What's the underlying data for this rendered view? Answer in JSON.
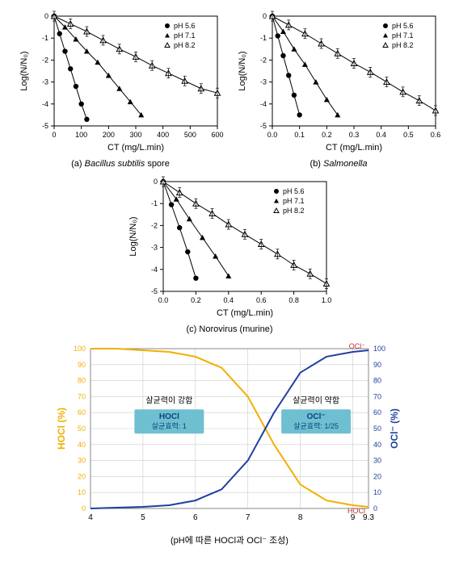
{
  "captions": {
    "a": "(a)",
    "a_name": "Bacillus subtilis",
    "a_suffix": "spore",
    "b": "(b)",
    "b_name": "Salmonella",
    "c": "(c)",
    "c_name": "Norovirus (murine)",
    "d": "(pH에 따른 HOCl과 OCl⁻ 조성)"
  },
  "chart_common": {
    "ylabel": "Log(N/N₀)",
    "legend": [
      "pH 5.6",
      "pH 7.1",
      "pH 8.2"
    ],
    "markers": [
      "circle-filled",
      "triangle-filled",
      "triangle-open"
    ],
    "line_color": "#000000",
    "bg": "#ffffff",
    "axis_color": "#000000",
    "tick_font": 9,
    "label_font": 11,
    "ylim": [
      -5,
      0
    ],
    "ytick_step": 1
  },
  "chart_a": {
    "xlabel": "CT (mg/L.min)",
    "xlim": [
      0,
      600
    ],
    "xtick_step": 100,
    "series": {
      "pH5.6": [
        [
          0,
          0
        ],
        [
          20,
          -0.8
        ],
        [
          40,
          -1.6
        ],
        [
          60,
          -2.4
        ],
        [
          80,
          -3.2
        ],
        [
          100,
          -4.0
        ],
        [
          120,
          -4.7
        ]
      ],
      "pH7.1": [
        [
          0,
          0
        ],
        [
          40,
          -0.5
        ],
        [
          80,
          -1.05
        ],
        [
          120,
          -1.6
        ],
        [
          160,
          -2.1
        ],
        [
          200,
          -2.7
        ],
        [
          240,
          -3.3
        ],
        [
          280,
          -3.9
        ],
        [
          320,
          -4.5
        ]
      ],
      "pH8.2": [
        [
          0,
          0
        ],
        [
          60,
          -0.35
        ],
        [
          120,
          -0.7
        ],
        [
          180,
          -1.1
        ],
        [
          240,
          -1.5
        ],
        [
          300,
          -1.85
        ],
        [
          360,
          -2.25
        ],
        [
          420,
          -2.6
        ],
        [
          480,
          -2.95
        ],
        [
          540,
          -3.3
        ],
        [
          600,
          -3.5
        ]
      ]
    }
  },
  "chart_b": {
    "xlabel": "CT (mg/L.min)",
    "xlim": [
      0,
      0.6
    ],
    "xtick_step": 0.1,
    "series": {
      "pH5.6": [
        [
          0,
          0
        ],
        [
          0.02,
          -0.9
        ],
        [
          0.04,
          -1.8
        ],
        [
          0.06,
          -2.7
        ],
        [
          0.08,
          -3.6
        ],
        [
          0.1,
          -4.5
        ]
      ],
      "pH7.1": [
        [
          0,
          0
        ],
        [
          0.04,
          -0.7
        ],
        [
          0.08,
          -1.5
        ],
        [
          0.12,
          -2.2
        ],
        [
          0.16,
          -3.0
        ],
        [
          0.2,
          -3.8
        ],
        [
          0.24,
          -4.5
        ]
      ],
      "pH8.2": [
        [
          0,
          0
        ],
        [
          0.06,
          -0.4
        ],
        [
          0.12,
          -0.8
        ],
        [
          0.18,
          -1.25
        ],
        [
          0.24,
          -1.7
        ],
        [
          0.3,
          -2.15
        ],
        [
          0.36,
          -2.55
        ],
        [
          0.42,
          -3.0
        ],
        [
          0.48,
          -3.45
        ],
        [
          0.54,
          -3.85
        ],
        [
          0.6,
          -4.3
        ]
      ]
    }
  },
  "chart_c": {
    "xlabel": "CT (mg/L.min)",
    "xlim": [
      0,
      1.0
    ],
    "xtick_step": 0.2,
    "series": {
      "pH5.6": [
        [
          0,
          0
        ],
        [
          0.05,
          -1.05
        ],
        [
          0.1,
          -2.1
        ],
        [
          0.15,
          -3.2
        ],
        [
          0.2,
          -4.4
        ]
      ],
      "pH7.1": [
        [
          0,
          0
        ],
        [
          0.08,
          -0.8
        ],
        [
          0.16,
          -1.7
        ],
        [
          0.24,
          -2.55
        ],
        [
          0.32,
          -3.4
        ],
        [
          0.4,
          -4.3
        ]
      ],
      "pH8.2": [
        [
          0,
          0
        ],
        [
          0.1,
          -0.5
        ],
        [
          0.2,
          -1.0
        ],
        [
          0.3,
          -1.45
        ],
        [
          0.4,
          -1.95
        ],
        [
          0.5,
          -2.4
        ],
        [
          0.6,
          -2.85
        ],
        [
          0.7,
          -3.3
        ],
        [
          0.8,
          -3.8
        ],
        [
          0.9,
          -4.2
        ],
        [
          1.0,
          -4.65
        ]
      ]
    }
  },
  "chart_d": {
    "ylabel_left": "HOCl (%)",
    "ylabel_right": "OCl⁻ (%)",
    "color_left": "#f0b000",
    "color_right": "#2040a0",
    "grid_color": "#cccccc",
    "bg": "#ffffff",
    "xlim": [
      4,
      9.3
    ],
    "xticks": [
      4,
      5,
      6,
      7,
      8,
      9,
      9.3
    ],
    "ylim": [
      0,
      100
    ],
    "ytick_step": 10,
    "hocl": [
      [
        4,
        100
      ],
      [
        4.5,
        100
      ],
      [
        5,
        99
      ],
      [
        5.5,
        98
      ],
      [
        6,
        95
      ],
      [
        6.5,
        88
      ],
      [
        7,
        70
      ],
      [
        7.3,
        52
      ],
      [
        7.5,
        40
      ],
      [
        8,
        15
      ],
      [
        8.5,
        5
      ],
      [
        9,
        2
      ],
      [
        9.3,
        1
      ]
    ],
    "ocl": [
      [
        4,
        0
      ],
      [
        5,
        1
      ],
      [
        5.5,
        2
      ],
      [
        6,
        5
      ],
      [
        6.5,
        12
      ],
      [
        7,
        30
      ],
      [
        7.3,
        48
      ],
      [
        7.5,
        60
      ],
      [
        8,
        85
      ],
      [
        8.5,
        95
      ],
      [
        9,
        98
      ],
      [
        9.3,
        99
      ]
    ],
    "left_box": {
      "title": "살균력이 강함",
      "sub1": "HOCl",
      "sub2": "살균효력: 1",
      "bg": "#6ec0d0"
    },
    "right_box": {
      "title": "살균력이 약함",
      "sub1": "OCl⁻",
      "sub2": "살균효력: 1/25",
      "bg": "#6ec0d0"
    },
    "end_labels": {
      "ocl": "OCl⁻",
      "hocl": "HOCl"
    }
  }
}
